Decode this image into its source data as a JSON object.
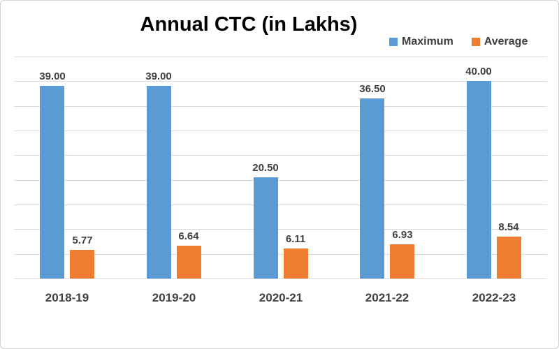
{
  "chart_data": {
    "type": "bar",
    "title": "Annual CTC (in Lakhs)",
    "categories": [
      "2018-19",
      "2019-20",
      "2020-21",
      "2021-22",
      "2022-23"
    ],
    "series": [
      {
        "name": "Maximum",
        "color": "#5B9BD5",
        "values": [
          39.0,
          39.0,
          20.5,
          36.5,
          40.0
        ],
        "labels": [
          "39.00",
          "39.00",
          "20.50",
          "36.50",
          "40.00"
        ]
      },
      {
        "name": "Average",
        "color": "#ED7D31",
        "values": [
          5.77,
          6.64,
          6.11,
          6.93,
          8.54
        ],
        "labels": [
          "5.77",
          "6.64",
          "6.11",
          "6.93",
          "8.54"
        ]
      }
    ],
    "xlabel": "",
    "ylabel": "",
    "ylim": [
      0,
      45
    ],
    "gridline_step": 5,
    "grid": true,
    "gridline_color": "#D9D9D9",
    "label_color": "#404040",
    "legend_position": "top-right"
  }
}
